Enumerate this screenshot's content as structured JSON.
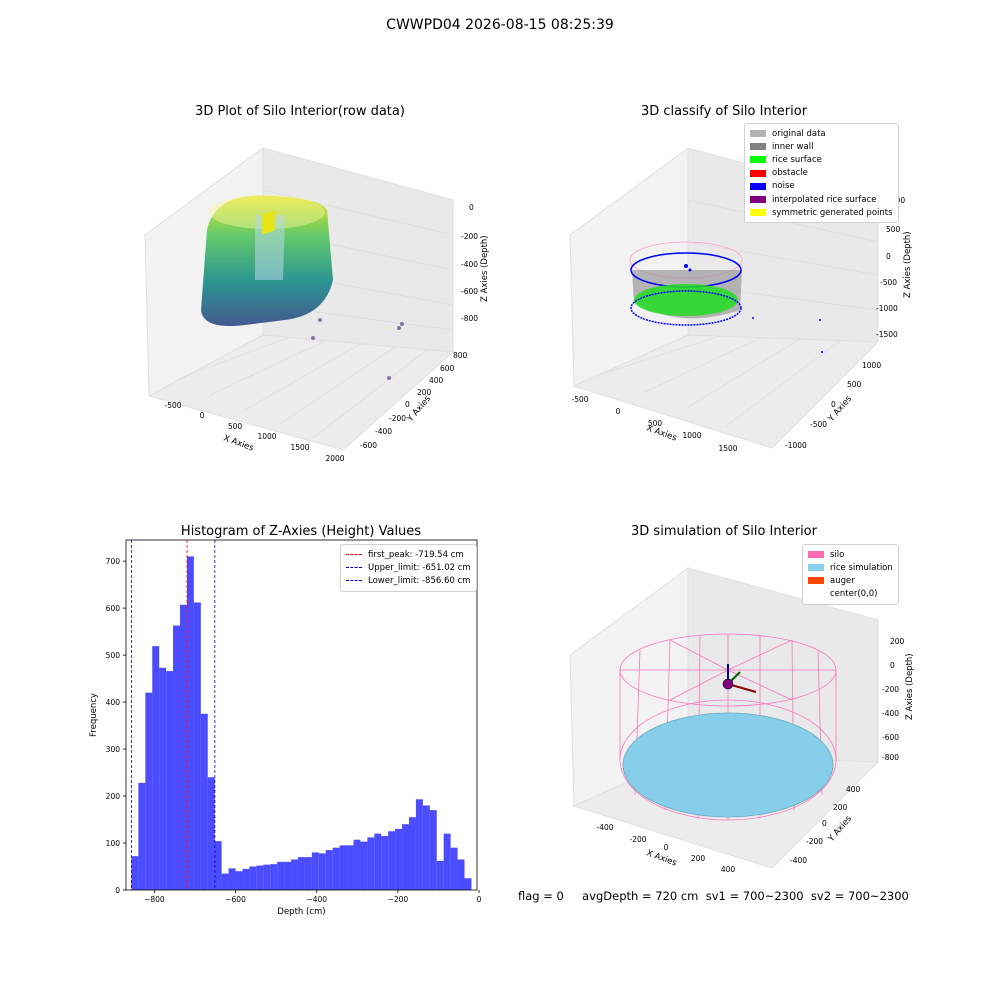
{
  "suptitle": "CWWPD04 2026-08-15 08:25:39",
  "footer": "flag = 0     avgDepth = 720 cm  sv1 = 700~2300  sv2 = 700~2300",
  "panels": {
    "raw": {
      "title": "3D Plot of Silo Interior(row data)",
      "xlabel": "X Axies",
      "ylabel": "Y Axies",
      "zlabel": "Z Axies (Depth)",
      "xticks": [
        "-500",
        "0",
        "500",
        "1000",
        "1500",
        "2000"
      ],
      "yticks": [
        "800",
        "600",
        "400",
        "200",
        "0",
        "-200",
        "-400",
        "-600"
      ],
      "zticks": [
        "0",
        "-200",
        "-400",
        "-600",
        "-800"
      ]
    },
    "classify": {
      "title": "3D classify of Silo Interior",
      "xlabel": "X Axies",
      "ylabel": "Y Axies",
      "zlabel": "Z Axies (Depth)",
      "xticks": [
        "-500",
        "0",
        "500",
        "1000",
        "1500"
      ],
      "yticks": [
        "1000",
        "500",
        "0",
        "-500",
        "-1000"
      ],
      "zticks": [
        "1000",
        "500",
        "0",
        "-500",
        "-1000",
        "-1500"
      ],
      "legend": [
        {
          "label": "original data",
          "color": "#b3b3b3"
        },
        {
          "label": "inner wall",
          "color": "#808080"
        },
        {
          "label": "rice surface",
          "color": "#00ff00"
        },
        {
          "label": "obstacle",
          "color": "#ff0000"
        },
        {
          "label": "noise",
          "color": "#0000ff"
        },
        {
          "label": "interpolated rice surface",
          "color": "#800080"
        },
        {
          "label": "symmetric generated points",
          "color": "#ffff00"
        }
      ]
    },
    "sim": {
      "title": "3D simulation of Silo Interior",
      "xlabel": "X Axies",
      "ylabel": "Y Axies",
      "zlabel": "Z Axies (Depth)",
      "xticks": [
        "-400",
        "-200",
        "0",
        "200",
        "400"
      ],
      "yticks": [
        "400",
        "200",
        "0",
        "-200",
        "-400"
      ],
      "zticks": [
        "200",
        "0",
        "-200",
        "-400",
        "-600",
        "-800"
      ],
      "legend": [
        {
          "label": "silo",
          "color": "#ff69b4"
        },
        {
          "label": "rice simulation",
          "color": "#87ceeb"
        },
        {
          "label": "auger",
          "color": "#ff4500"
        },
        {
          "label": "center(0,0)",
          "color": "#ffffff"
        }
      ]
    }
  },
  "chart_data": {
    "type": "bar",
    "title": "Histogram of Z-Axies (Height) Values",
    "xlabel": "Depth (cm)",
    "ylabel": "Frequency",
    "xlim": [
      -870,
      -5
    ],
    "ylim": [
      0,
      745
    ],
    "xticks": [
      -800,
      -600,
      -400,
      -200,
      0
    ],
    "yticks": [
      0,
      100,
      200,
      300,
      400,
      500,
      600,
      700
    ],
    "bin_width": 17.1,
    "bin_start": -856.6,
    "values": [
      72,
      228,
      420,
      519,
      473,
      466,
      563,
      607,
      710,
      612,
      375,
      240,
      104,
      35,
      46,
      40,
      45,
      50,
      52,
      54,
      55,
      60,
      60,
      65,
      70,
      70,
      80,
      78,
      85,
      90,
      95,
      95,
      107,
      103,
      112,
      120,
      115,
      125,
      130,
      140,
      155,
      193,
      180,
      170,
      62,
      120,
      90,
      65,
      25
    ],
    "bar_color": "#0000ff",
    "bar_alpha": 0.7,
    "vlines": [
      {
        "label": "first_peak: -719.54 cm",
        "x": -719.54,
        "color": "#ff0000"
      },
      {
        "label": "Upper_limit: -651.02 cm",
        "x": -651.02,
        "color": "#0000cc"
      },
      {
        "label": "Lower_limit: -856.60 cm",
        "x": -856.6,
        "color": "#0000cc"
      }
    ]
  }
}
